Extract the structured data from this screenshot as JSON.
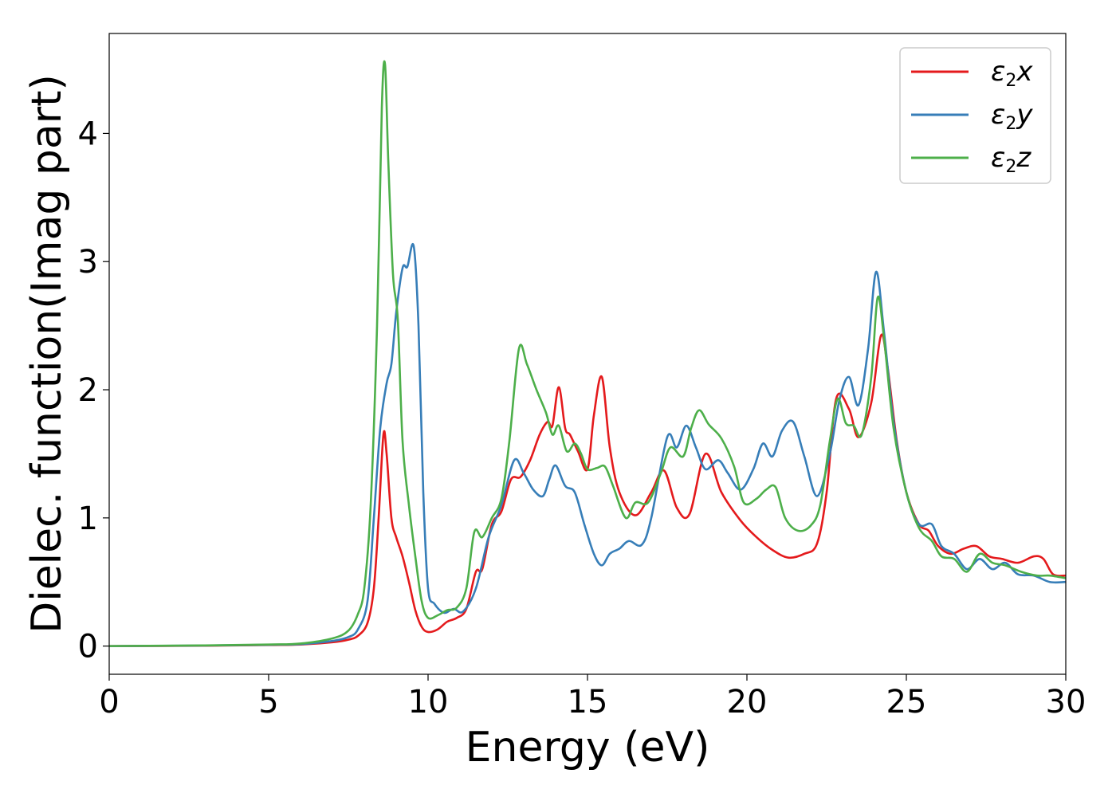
{
  "chart_data": {
    "type": "line",
    "xlabel": "Energy (eV)",
    "ylabel": "Dielec. function(Imag part)",
    "xlim": [
      0,
      30
    ],
    "ylim": [
      -0.22,
      4.78
    ],
    "xticks": [
      "0",
      "5",
      "10",
      "15",
      "20",
      "25",
      "30"
    ],
    "yticks": [
      "0",
      "1",
      "2",
      "3",
      "4"
    ],
    "grid": false,
    "legend_position": "top-right",
    "series": [
      {
        "name": "ε2x",
        "legend_symbol": "ε",
        "legend_sub": "2",
        "legend_var": "x",
        "color": "#e41a1c",
        "points": [
          [
            0,
            0
          ],
          [
            3,
            0.003
          ],
          [
            5,
            0.008
          ],
          [
            6,
            0.012
          ],
          [
            7,
            0.03
          ],
          [
            7.5,
            0.05
          ],
          [
            7.8,
            0.08
          ],
          [
            8.1,
            0.18
          ],
          [
            8.3,
            0.45
          ],
          [
            8.45,
            1.0
          ],
          [
            8.6,
            1.65
          ],
          [
            8.7,
            1.5
          ],
          [
            8.85,
            1.0
          ],
          [
            9.0,
            0.85
          ],
          [
            9.2,
            0.7
          ],
          [
            9.4,
            0.5
          ],
          [
            9.6,
            0.28
          ],
          [
            9.8,
            0.15
          ],
          [
            10.0,
            0.11
          ],
          [
            10.3,
            0.13
          ],
          [
            10.6,
            0.19
          ],
          [
            10.9,
            0.22
          ],
          [
            11.2,
            0.29
          ],
          [
            11.5,
            0.58
          ],
          [
            11.7,
            0.6
          ],
          [
            12.0,
            0.95
          ],
          [
            12.3,
            1.05
          ],
          [
            12.6,
            1.3
          ],
          [
            12.9,
            1.32
          ],
          [
            13.2,
            1.45
          ],
          [
            13.5,
            1.65
          ],
          [
            13.75,
            1.75
          ],
          [
            13.9,
            1.72
          ],
          [
            14.1,
            2.02
          ],
          [
            14.3,
            1.7
          ],
          [
            14.45,
            1.65
          ],
          [
            14.7,
            1.52
          ],
          [
            15.0,
            1.38
          ],
          [
            15.2,
            1.8
          ],
          [
            15.45,
            2.1
          ],
          [
            15.7,
            1.55
          ],
          [
            16.0,
            1.2
          ],
          [
            16.5,
            1.02
          ],
          [
            17.0,
            1.2
          ],
          [
            17.4,
            1.37
          ],
          [
            17.8,
            1.08
          ],
          [
            18.2,
            1.03
          ],
          [
            18.7,
            1.5
          ],
          [
            19.2,
            1.2
          ],
          [
            19.8,
            0.98
          ],
          [
            20.3,
            0.85
          ],
          [
            20.8,
            0.75
          ],
          [
            21.3,
            0.69
          ],
          [
            21.8,
            0.72
          ],
          [
            22.2,
            0.8
          ],
          [
            22.5,
            1.2
          ],
          [
            22.8,
            1.93
          ],
          [
            23.2,
            1.85
          ],
          [
            23.5,
            1.63
          ],
          [
            23.9,
            1.9
          ],
          [
            24.2,
            2.42
          ],
          [
            24.4,
            2.2
          ],
          [
            24.7,
            1.6
          ],
          [
            25.0,
            1.2
          ],
          [
            25.4,
            0.95
          ],
          [
            25.7,
            0.9
          ],
          [
            26.0,
            0.78
          ],
          [
            26.4,
            0.72
          ],
          [
            26.8,
            0.76
          ],
          [
            27.2,
            0.78
          ],
          [
            27.6,
            0.7
          ],
          [
            28.0,
            0.68
          ],
          [
            28.5,
            0.65
          ],
          [
            29.0,
            0.7
          ],
          [
            29.3,
            0.68
          ],
          [
            29.6,
            0.56
          ],
          [
            30,
            0.55
          ]
        ]
      },
      {
        "name": "ε2y",
        "legend_symbol": "ε",
        "legend_sub": "2",
        "legend_var": "y",
        "color": "#377eb8",
        "points": [
          [
            0,
            0
          ],
          [
            3,
            0.004
          ],
          [
            5,
            0.01
          ],
          [
            6,
            0.015
          ],
          [
            7,
            0.04
          ],
          [
            7.5,
            0.07
          ],
          [
            7.8,
            0.13
          ],
          [
            8.1,
            0.35
          ],
          [
            8.3,
            1.0
          ],
          [
            8.5,
            1.7
          ],
          [
            8.7,
            2.05
          ],
          [
            8.85,
            2.2
          ],
          [
            9.0,
            2.6
          ],
          [
            9.2,
            2.95
          ],
          [
            9.35,
            2.96
          ],
          [
            9.55,
            3.12
          ],
          [
            9.7,
            2.5
          ],
          [
            9.85,
            1.2
          ],
          [
            10.0,
            0.45
          ],
          [
            10.2,
            0.33
          ],
          [
            10.5,
            0.26
          ],
          [
            10.8,
            0.29
          ],
          [
            11.1,
            0.27
          ],
          [
            11.5,
            0.45
          ],
          [
            11.9,
            0.85
          ],
          [
            12.3,
            1.1
          ],
          [
            12.7,
            1.45
          ],
          [
            13.0,
            1.35
          ],
          [
            13.3,
            1.22
          ],
          [
            13.6,
            1.17
          ],
          [
            13.8,
            1.3
          ],
          [
            14.0,
            1.41
          ],
          [
            14.3,
            1.25
          ],
          [
            14.6,
            1.2
          ],
          [
            14.9,
            0.95
          ],
          [
            15.2,
            0.72
          ],
          [
            15.45,
            0.63
          ],
          [
            15.7,
            0.72
          ],
          [
            16.0,
            0.76
          ],
          [
            16.3,
            0.82
          ],
          [
            16.7,
            0.79
          ],
          [
            17.0,
            1.0
          ],
          [
            17.5,
            1.63
          ],
          [
            17.8,
            1.55
          ],
          [
            18.1,
            1.72
          ],
          [
            18.4,
            1.55
          ],
          [
            18.7,
            1.38
          ],
          [
            19.1,
            1.45
          ],
          [
            19.4,
            1.35
          ],
          [
            19.8,
            1.22
          ],
          [
            20.2,
            1.38
          ],
          [
            20.5,
            1.58
          ],
          [
            20.8,
            1.48
          ],
          [
            21.1,
            1.68
          ],
          [
            21.45,
            1.75
          ],
          [
            21.8,
            1.48
          ],
          [
            22.2,
            1.17
          ],
          [
            22.6,
            1.5
          ],
          [
            22.9,
            1.92
          ],
          [
            23.2,
            2.1
          ],
          [
            23.5,
            1.88
          ],
          [
            23.8,
            2.32
          ],
          [
            24.05,
            2.92
          ],
          [
            24.3,
            2.45
          ],
          [
            24.6,
            1.75
          ],
          [
            25.0,
            1.2
          ],
          [
            25.4,
            0.95
          ],
          [
            25.8,
            0.95
          ],
          [
            26.1,
            0.78
          ],
          [
            26.5,
            0.72
          ],
          [
            26.9,
            0.6
          ],
          [
            27.3,
            0.68
          ],
          [
            27.7,
            0.6
          ],
          [
            28.1,
            0.65
          ],
          [
            28.5,
            0.56
          ],
          [
            29.0,
            0.55
          ],
          [
            29.5,
            0.5
          ],
          [
            30,
            0.5
          ]
        ]
      },
      {
        "name": "ε2z",
        "legend_symbol": "ε",
        "legend_sub": "2",
        "legend_var": "z",
        "color": "#4daf4a",
        "points": [
          [
            0,
            0
          ],
          [
            3,
            0.005
          ],
          [
            5,
            0.012
          ],
          [
            6,
            0.02
          ],
          [
            7,
            0.06
          ],
          [
            7.5,
            0.12
          ],
          [
            7.8,
            0.25
          ],
          [
            8.0,
            0.45
          ],
          [
            8.2,
            1.1
          ],
          [
            8.4,
            2.5
          ],
          [
            8.55,
            4.2
          ],
          [
            8.65,
            4.54
          ],
          [
            8.75,
            3.8
          ],
          [
            8.9,
            2.9
          ],
          [
            9.05,
            2.55
          ],
          [
            9.2,
            1.6
          ],
          [
            9.4,
            1.1
          ],
          [
            9.6,
            0.7
          ],
          [
            9.8,
            0.35
          ],
          [
            10.0,
            0.22
          ],
          [
            10.3,
            0.24
          ],
          [
            10.6,
            0.28
          ],
          [
            10.9,
            0.3
          ],
          [
            11.2,
            0.45
          ],
          [
            11.45,
            0.89
          ],
          [
            11.7,
            0.85
          ],
          [
            12.0,
            1.0
          ],
          [
            12.3,
            1.15
          ],
          [
            12.55,
            1.6
          ],
          [
            12.85,
            2.32
          ],
          [
            13.1,
            2.2
          ],
          [
            13.4,
            2.0
          ],
          [
            13.7,
            1.82
          ],
          [
            13.9,
            1.65
          ],
          [
            14.1,
            1.72
          ],
          [
            14.35,
            1.52
          ],
          [
            14.6,
            1.58
          ],
          [
            14.8,
            1.5
          ],
          [
            15.0,
            1.38
          ],
          [
            15.3,
            1.39
          ],
          [
            15.55,
            1.4
          ],
          [
            15.8,
            1.25
          ],
          [
            16.2,
            1.0
          ],
          [
            16.5,
            1.12
          ],
          [
            16.9,
            1.12
          ],
          [
            17.3,
            1.35
          ],
          [
            17.6,
            1.55
          ],
          [
            18.0,
            1.48
          ],
          [
            18.25,
            1.7
          ],
          [
            18.5,
            1.84
          ],
          [
            18.8,
            1.73
          ],
          [
            19.2,
            1.62
          ],
          [
            19.6,
            1.4
          ],
          [
            19.9,
            1.12
          ],
          [
            20.3,
            1.15
          ],
          [
            20.6,
            1.22
          ],
          [
            20.9,
            1.24
          ],
          [
            21.2,
            1.0
          ],
          [
            21.6,
            0.9
          ],
          [
            22.0,
            0.94
          ],
          [
            22.3,
            1.1
          ],
          [
            22.6,
            1.6
          ],
          [
            22.85,
            1.93
          ],
          [
            23.1,
            1.74
          ],
          [
            23.35,
            1.72
          ],
          [
            23.6,
            1.65
          ],
          [
            23.9,
            2.1
          ],
          [
            24.1,
            2.72
          ],
          [
            24.3,
            2.4
          ],
          [
            24.6,
            1.7
          ],
          [
            25.0,
            1.2
          ],
          [
            25.4,
            0.92
          ],
          [
            25.8,
            0.82
          ],
          [
            26.1,
            0.7
          ],
          [
            26.5,
            0.68
          ],
          [
            26.9,
            0.58
          ],
          [
            27.3,
            0.72
          ],
          [
            27.7,
            0.65
          ],
          [
            28.1,
            0.63
          ],
          [
            28.6,
            0.58
          ],
          [
            29.1,
            0.55
          ],
          [
            29.5,
            0.55
          ],
          [
            30,
            0.53
          ]
        ]
      }
    ]
  }
}
